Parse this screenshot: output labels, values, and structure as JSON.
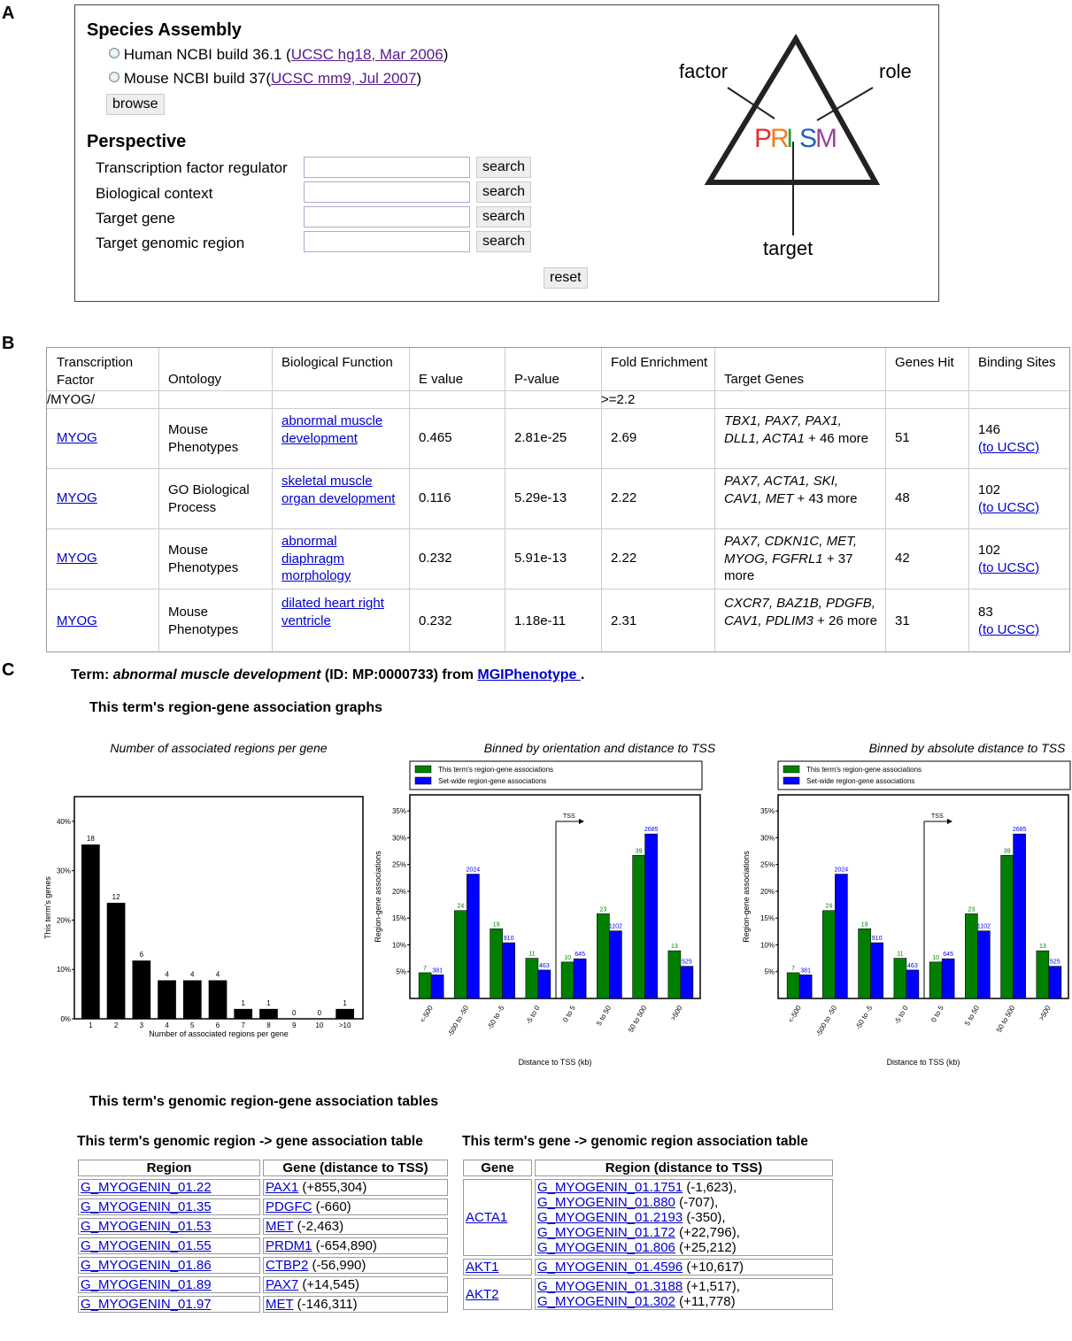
{
  "panel_letters": {
    "a": "A",
    "b": "B",
    "c": "C"
  },
  "panelA": {
    "species_title": "Species Assembly",
    "human_text": "Human NCBI build 36.1 (",
    "human_link": "UCSC hg18, Mar 2006",
    "human_close": ")",
    "mouse_text": "Mouse NCBI build 37(",
    "mouse_link": "UCSC mm9, Jul 2007",
    "mouse_close": ")",
    "browse_label": "browse",
    "perspective_title": "Perspective",
    "fields": [
      {
        "label": "Transcription factor regulator",
        "button": "search"
      },
      {
        "label": "Biological context",
        "button": "search"
      },
      {
        "label": "Target gene",
        "button": "search"
      },
      {
        "label": "Target genomic region",
        "button": "search"
      }
    ],
    "reset_label": "reset",
    "prism": {
      "factor": "factor",
      "role": "role",
      "target": "target",
      "letters": [
        "P",
        "R",
        "I",
        "S",
        "M"
      ],
      "colors": [
        "#e03030",
        "#f08020",
        "#30a030",
        "#2060c0",
        "#a040a0"
      ]
    }
  },
  "panelB": {
    "headers": [
      "Transcription Factor",
      "Ontology",
      "Biological Function",
      "E value",
      "P-value",
      "Fold Enrichment",
      "Target Genes",
      "Genes Hit",
      "Binding Sites"
    ],
    "filter_left": "/MYOG/",
    "filter_fold": ">=2.2",
    "rows": [
      {
        "tf": "MYOG",
        "ontology": "Mouse Phenotypes",
        "function": "abnormal muscle development",
        "e": "0.465",
        "p": "2.81e-25",
        "fold": "2.69",
        "genes_italic": "TBX1, PAX7, PAX1, DLL1, ACTA1",
        "genes_more": " + 46 more",
        "hit": "51",
        "sites": "146",
        "ucsc": "(to UCSC)"
      },
      {
        "tf": "MYOG",
        "ontology": "GO Biological Process",
        "function": "skeletal muscle organ development",
        "e": "0.116",
        "p": "5.29e-13",
        "fold": "2.22",
        "genes_italic": "PAX7, ACTA1, SKI, CAV1, MET",
        "genes_more": " + 43 more",
        "hit": "48",
        "sites": "102",
        "ucsc": "(to UCSC)"
      },
      {
        "tf": "MYOG",
        "ontology": "Mouse Phenotypes",
        "function": "abnormal diaphragm morphology",
        "e": "0.232",
        "p": "5.91e-13",
        "fold": "2.22",
        "genes_italic": "PAX7, CDKN1C, MET, MYOG, FGFRL1",
        "genes_more": " + 37 more",
        "hit": "42",
        "sites": "102",
        "ucsc": "(to UCSC)"
      },
      {
        "tf": "MYOG",
        "ontology": "Mouse Phenotypes",
        "function": "dilated heart right ventricle",
        "e": "0.232",
        "p": "1.18e-11",
        "fold": "2.31",
        "genes_italic": "CXCR7, BAZ1B, PDGFB, CAV1, PDLIM3",
        "genes_more": " + 26 more",
        "hit": "31",
        "sites": "83",
        "ucsc": "(to UCSC)"
      }
    ]
  },
  "panelC": {
    "term_prefix": "Term: ",
    "term_name": "abnormal muscle development",
    "term_id": " (ID: MP:0000733) from ",
    "term_source": "MGIPhenotype ",
    "term_end": ".",
    "graphs_heading": "This term's region-gene association graphs",
    "tables_heading": "This term's genomic region-gene association tables",
    "table1_title": "This term's genomic region -> gene association table",
    "table1_headers": [
      "Region",
      "Gene (distance to TSS)"
    ],
    "table1_rows": [
      {
        "region": "G_MYOGENIN_01.22",
        "gene": "PAX1",
        "dist": " (+855,304)"
      },
      {
        "region": "G_MYOGENIN_01.35",
        "gene": "PDGFC",
        "dist": " (-660)"
      },
      {
        "region": "G_MYOGENIN_01.53",
        "gene": "MET",
        "dist": " (-2,463)"
      },
      {
        "region": "G_MYOGENIN_01.55",
        "gene": "PRDM1",
        "dist": " (-654,890)"
      },
      {
        "region": "G_MYOGENIN_01.86",
        "gene": "CTBP2",
        "dist": " (-56,990)"
      },
      {
        "region": "G_MYOGENIN_01.89",
        "gene": "PAX7",
        "dist": " (+14,545)"
      },
      {
        "region": "G_MYOGENIN_01.97",
        "gene": "MET",
        "dist": " (-146,311)"
      }
    ],
    "table2_title": "This term's gene -> genomic region association table",
    "table2_headers": [
      "Gene",
      "Region (distance to TSS)"
    ],
    "table2_rows": [
      {
        "gene": "ACTA1",
        "regions": [
          {
            "r": "G_MYOGENIN_01.1751",
            "d": " (-1,623),"
          },
          {
            "r": "G_MYOGENIN_01.880",
            "d": " (-707),"
          },
          {
            "r": "G_MYOGENIN_01.2193",
            "d": " (-350),"
          },
          {
            "r": "G_MYOGENIN_01.172",
            "d": " (+22,796),"
          },
          {
            "r": "G_MYOGENIN_01.806",
            "d": " (+25,212)"
          }
        ]
      },
      {
        "gene": "AKT1",
        "regions": [
          {
            "r": "G_MYOGENIN_01.4596",
            "d": " (+10,617)"
          }
        ]
      },
      {
        "gene": "AKT2",
        "regions": [
          {
            "r": "G_MYOGENIN_01.3188",
            "d": " (+1,517),"
          },
          {
            "r": "G_MYOGENIN_01.302",
            "d": " (+11,778)"
          }
        ]
      }
    ]
  },
  "chart_data": [
    {
      "type": "bar",
      "title": "Number of associated regions per gene",
      "xlabel": "Number of associated regions per gene",
      "ylabel": "This term's genes",
      "categories": [
        "1",
        "2",
        "3",
        "4",
        "5",
        "6",
        "7",
        "8",
        "9",
        "10",
        ">10"
      ],
      "values": [
        35.3,
        23.5,
        11.8,
        7.8,
        7.8,
        7.8,
        2.0,
        2.0,
        0,
        0,
        2.0
      ],
      "labels": [
        "18",
        "12",
        "6",
        "4",
        "4",
        "4",
        "1",
        "1",
        "0",
        "0",
        "1"
      ],
      "yticks": [
        "0%",
        "10%",
        "20%",
        "30%",
        "40%"
      ],
      "ylim": [
        0,
        45
      ],
      "color": "#000000"
    },
    {
      "type": "bar",
      "title": "Binned by orientation and distance to TSS",
      "xlabel": "Distance to TSS (kb)",
      "ylabel": "Region-gene associations",
      "categories": [
        "<-500",
        "-500 to -50",
        "-50 to -5",
        "-5 to 0",
        "0 to 5",
        "5 to 50",
        "50 to 500",
        ">500"
      ],
      "series": [
        {
          "name": "This term's region-gene associations",
          "color": "#008000",
          "values": [
            4.8,
            16.4,
            13.0,
            7.5,
            6.8,
            15.8,
            26.7,
            8.9
          ],
          "labels": [
            "7",
            "24",
            "19",
            "11",
            "10",
            "23",
            "39",
            "13"
          ]
        },
        {
          "name": "Set-wide region-gene associations",
          "color": "#0000ff",
          "values": [
            4.4,
            23.2,
            10.4,
            5.3,
            7.4,
            12.6,
            30.7,
            6.0
          ],
          "labels": [
            "381",
            "2024",
            "910",
            "463",
            "645",
            "1102",
            "2685",
            "525"
          ]
        }
      ],
      "yticks": [
        "5%",
        "10%",
        "15%",
        "20%",
        "25%",
        "30%",
        "35%"
      ],
      "ylim": [
        0,
        38
      ],
      "annotation": "TSS"
    },
    {
      "type": "bar",
      "title": "Binned by absolute distance to TSS",
      "xlabel": "Distance to TSS (kb)",
      "ylabel": "Region-gene associations",
      "categories": [
        "<-500",
        "-500 to -50",
        "-50 to -5",
        "-5 to 0",
        "0 to 5",
        "5 to 50",
        "50 to 500",
        ">500"
      ],
      "series": [
        {
          "name": "This term's region-gene associations",
          "color": "#008000",
          "values": [
            4.8,
            16.4,
            13.0,
            7.5,
            6.8,
            15.8,
            26.7,
            8.9
          ],
          "labels": [
            "7",
            "24",
            "19",
            "11",
            "10",
            "23",
            "39",
            "13"
          ]
        },
        {
          "name": "Set-wide region-gene associations",
          "color": "#0000ff",
          "values": [
            4.4,
            23.2,
            10.4,
            5.3,
            7.4,
            12.6,
            30.7,
            6.0
          ],
          "labels": [
            "381",
            "2024",
            "910",
            "463",
            "645",
            "1102",
            "2685",
            "525"
          ]
        }
      ],
      "yticks": [
        "5%",
        "10%",
        "15%",
        "20%",
        "25%",
        "30%",
        "35%"
      ],
      "ylim": [
        0,
        38
      ],
      "annotation": "TSS"
    }
  ]
}
